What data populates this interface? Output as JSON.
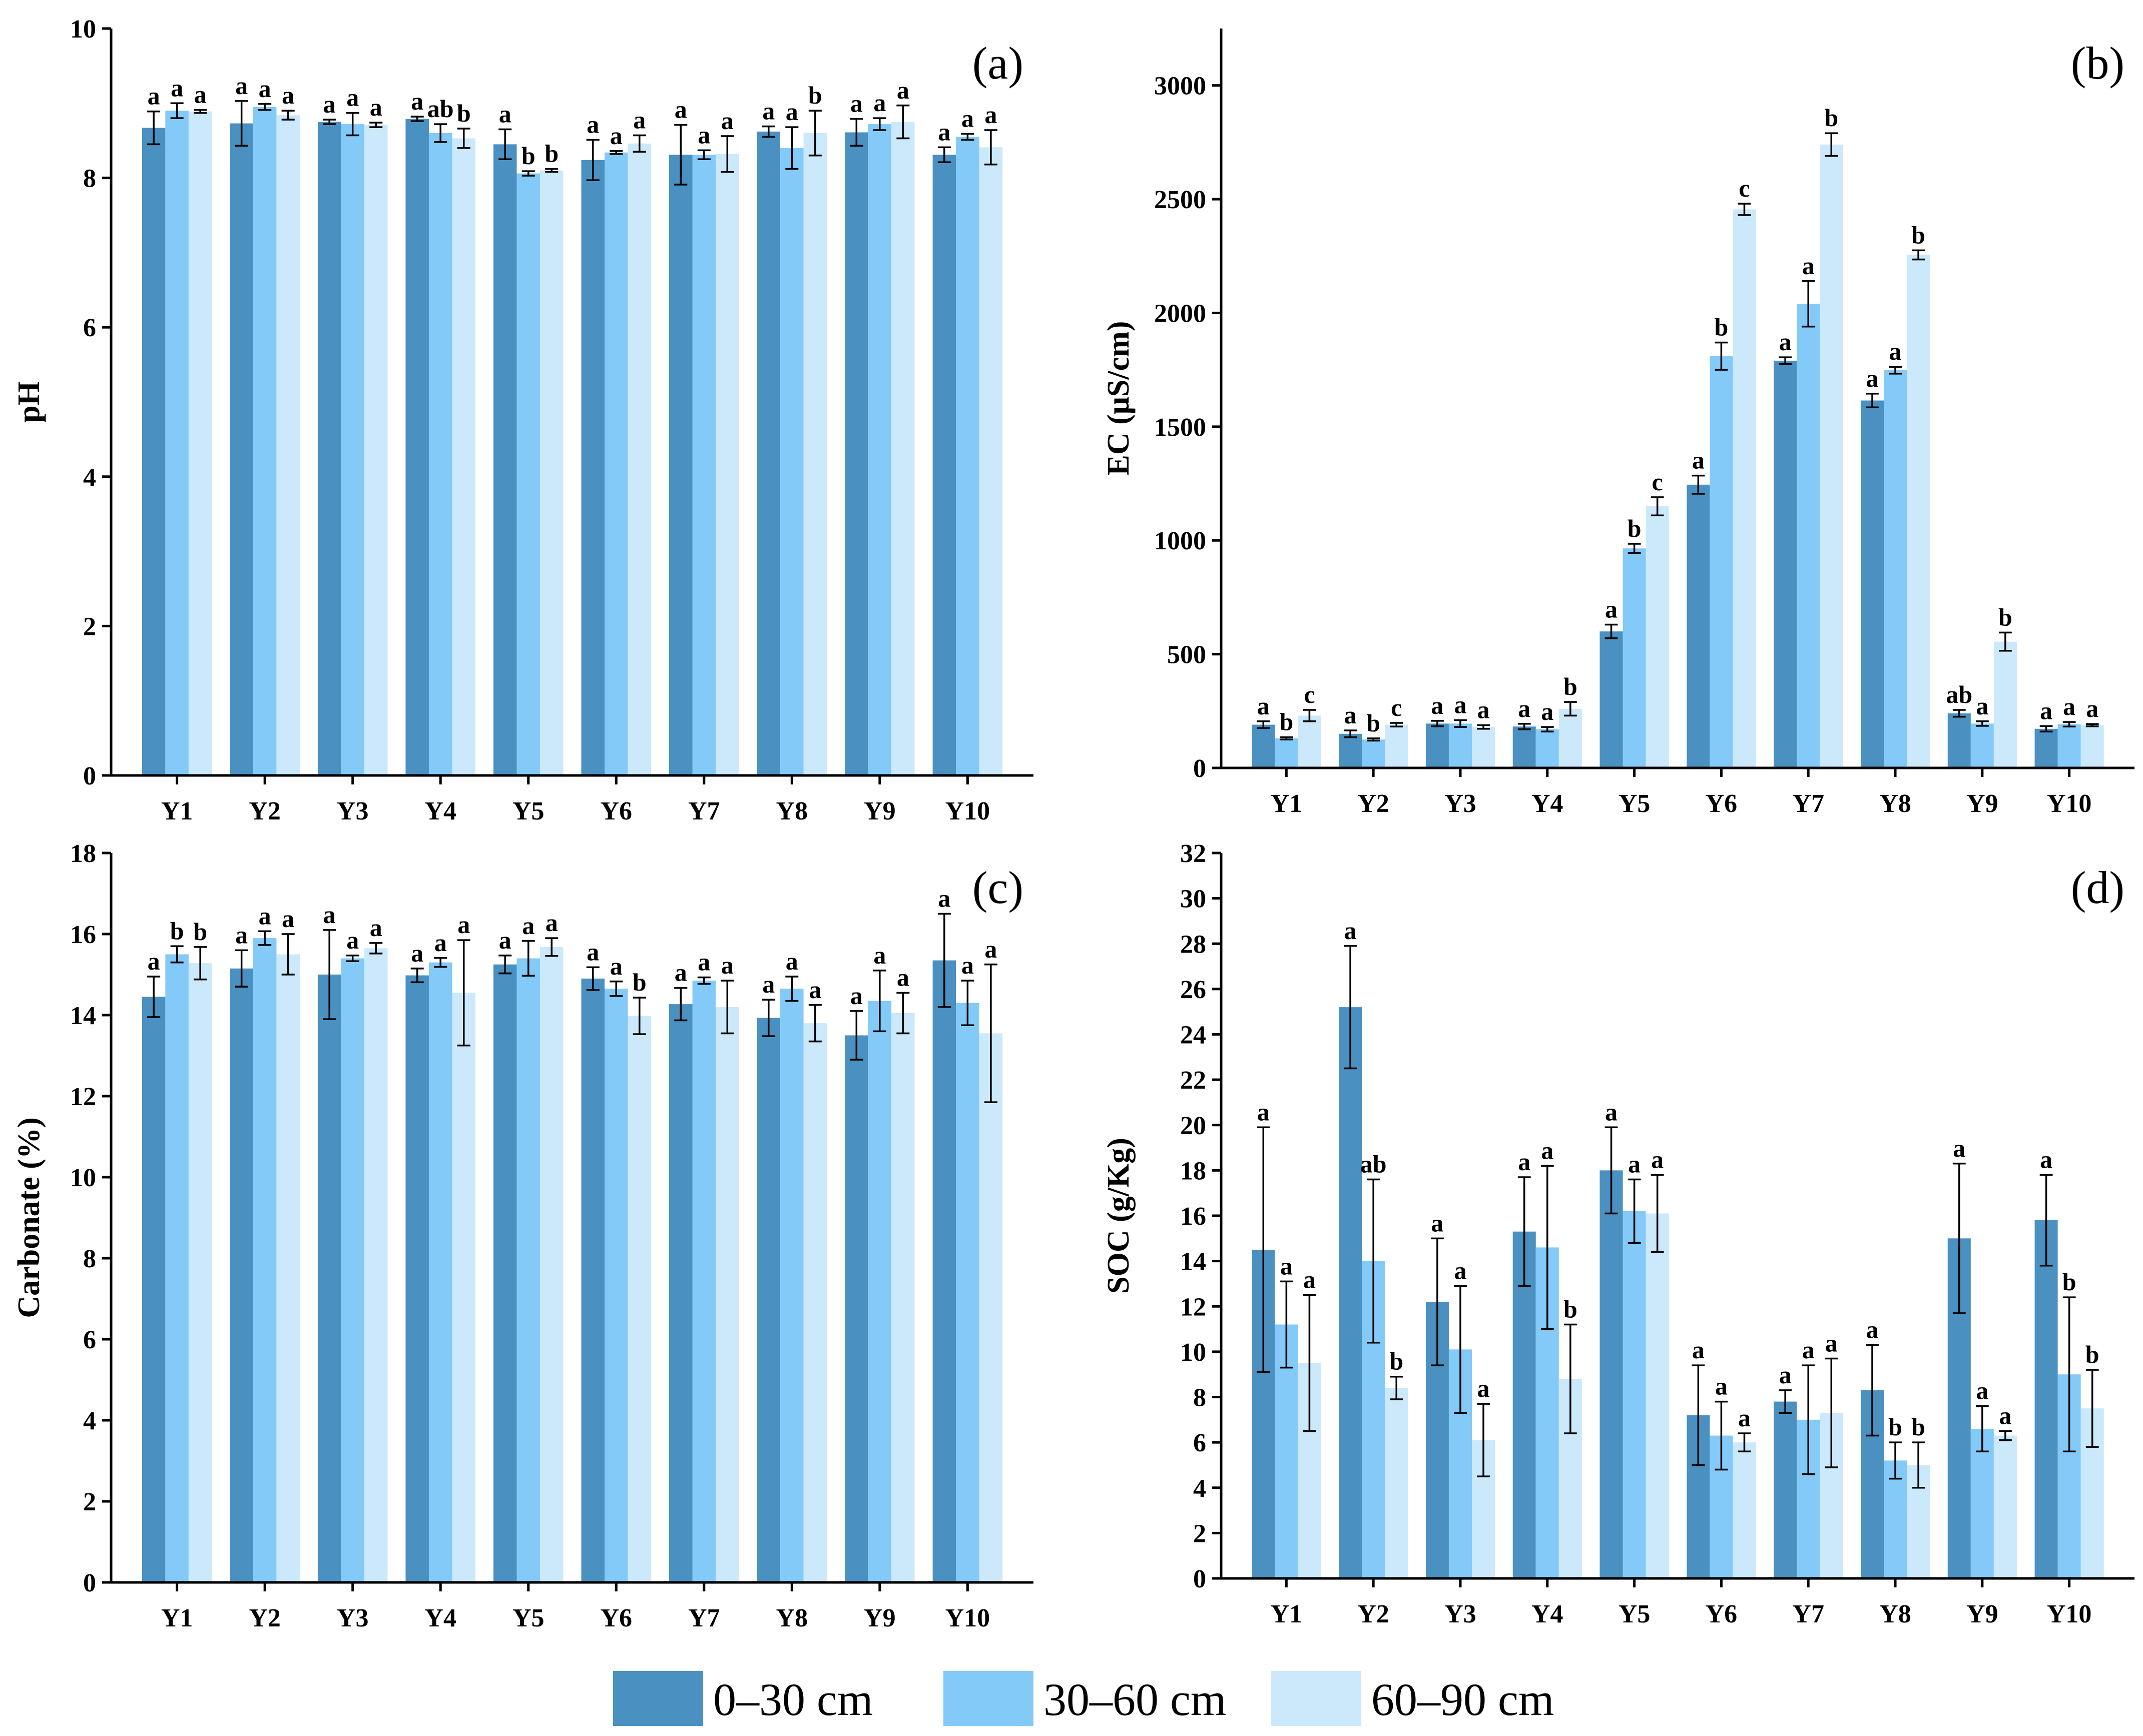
{
  "colors": {
    "s1": "#4a90c0",
    "s2": "#83caf8",
    "s3": "#cbe9fb"
  },
  "legend": {
    "items": [
      {
        "label": "0–30 cm",
        "color": "#4a90c0"
      },
      {
        "label": "30–60 cm",
        "color": "#83caf8"
      },
      {
        "label": "60–90 cm",
        "color": "#cbe9fb"
      }
    ]
  },
  "chart_data": [
    {
      "type": "bar",
      "panel": "(a)",
      "ylabel": "pH",
      "ylim": [
        0,
        10
      ],
      "yticks": [
        0,
        2,
        4,
        6,
        8,
        10
      ],
      "categories": [
        "Y1",
        "Y2",
        "Y3",
        "Y4",
        "Y5",
        "Y6",
        "Y7",
        "Y8",
        "Y9",
        "Y10"
      ],
      "series": [
        {
          "name": "0–30 cm",
          "values": [
            8.67,
            8.73,
            8.75,
            8.79,
            8.45,
            8.24,
            8.31,
            8.62,
            8.61,
            8.31
          ],
          "errors": [
            0.22,
            0.3,
            0.03,
            0.03,
            0.2,
            0.27,
            0.4,
            0.07,
            0.18,
            0.1
          ],
          "labels": [
            "a",
            "a",
            "a",
            "a",
            "a",
            "a",
            "a",
            "a",
            "a",
            "a"
          ]
        },
        {
          "name": "30–60 cm",
          "values": [
            8.9,
            8.95,
            8.72,
            8.6,
            8.06,
            8.34,
            8.31,
            8.4,
            8.72,
            8.55
          ],
          "errors": [
            0.1,
            0.04,
            0.15,
            0.12,
            0.03,
            0.02,
            0.06,
            0.28,
            0.08,
            0.04
          ],
          "labels": [
            "a",
            "a",
            "a",
            "ab",
            "b",
            "a",
            "a",
            "a",
            "a",
            "a"
          ]
        },
        {
          "name": "60–90 cm",
          "values": [
            8.89,
            8.84,
            8.71,
            8.53,
            8.1,
            8.46,
            8.32,
            8.6,
            8.75,
            8.41
          ],
          "errors": [
            0.02,
            0.06,
            0.03,
            0.13,
            0.02,
            0.11,
            0.24,
            0.3,
            0.22,
            0.23
          ],
          "labels": [
            "a",
            "a",
            "a",
            "b",
            "b",
            "a",
            "a",
            "b",
            "a",
            "a"
          ]
        }
      ]
    },
    {
      "type": "bar",
      "panel": "(b)",
      "ylabel": "EC (μS/cm)",
      "ylim": [
        0,
        3250
      ],
      "yticks": [
        0,
        500,
        1000,
        1500,
        2000,
        2500,
        3000
      ],
      "categories": [
        "Y1",
        "Y2",
        "Y3",
        "Y4",
        "Y5",
        "Y6",
        "Y7",
        "Y8",
        "Y9",
        "Y10"
      ],
      "series": [
        {
          "name": "0–30 cm",
          "values": [
            190,
            150,
            195,
            182,
            600,
            1245,
            1790,
            1615,
            240,
            172
          ],
          "errors": [
            15,
            15,
            12,
            12,
            30,
            40,
            15,
            30,
            15,
            12
          ],
          "labels": [
            "a",
            "a",
            "a",
            "a",
            "a",
            "a",
            "a",
            "a",
            "ab",
            "a"
          ]
        },
        {
          "name": "30–60 cm",
          "values": [
            130,
            125,
            195,
            170,
            965,
            1810,
            2040,
            1748,
            195,
            192
          ],
          "errors": [
            5,
            5,
            15,
            10,
            20,
            60,
            100,
            15,
            10,
            10
          ],
          "labels": [
            "b",
            "b",
            "a",
            "a",
            "b",
            "b",
            "a",
            "a",
            "a",
            "a"
          ]
        },
        {
          "name": "60–90 cm",
          "values": [
            230,
            190,
            180,
            260,
            1150,
            2455,
            2740,
            2255,
            555,
            188
          ],
          "errors": [
            25,
            8,
            8,
            30,
            40,
            25,
            50,
            20,
            40,
            5
          ],
          "labels": [
            "c",
            "c",
            "a",
            "b",
            "c",
            "c",
            "b",
            "b",
            "b",
            "a"
          ]
        }
      ]
    },
    {
      "type": "bar",
      "panel": "(c)",
      "ylabel": "Carbonate (%)",
      "ylim": [
        0,
        18
      ],
      "yticks": [
        0,
        2,
        4,
        6,
        8,
        10,
        12,
        14,
        16,
        18
      ],
      "categories": [
        "Y1",
        "Y2",
        "Y3",
        "Y4",
        "Y5",
        "Y6",
        "Y7",
        "Y8",
        "Y9",
        "Y10"
      ],
      "series": [
        {
          "name": "0–30 cm",
          "values": [
            14.45,
            15.15,
            15.0,
            14.98,
            15.25,
            14.9,
            14.27,
            13.93,
            13.5,
            15.35
          ],
          "errors": [
            0.5,
            0.45,
            1.1,
            0.17,
            0.22,
            0.28,
            0.4,
            0.45,
            0.6,
            1.15
          ],
          "labels": [
            "a",
            "a",
            "a",
            "a",
            "a",
            "a",
            "a",
            "a",
            "a",
            "a"
          ]
        },
        {
          "name": "30–60 cm",
          "values": [
            15.5,
            15.9,
            15.4,
            15.3,
            15.4,
            14.65,
            14.85,
            14.65,
            14.35,
            14.3
          ],
          "errors": [
            0.2,
            0.17,
            0.07,
            0.11,
            0.43,
            0.18,
            0.08,
            0.3,
            0.75,
            0.55
          ],
          "labels": [
            "b",
            "a",
            "a",
            "a",
            "a",
            "a",
            "a",
            "a",
            "a",
            "a"
          ]
        },
        {
          "name": "60–90 cm",
          "values": [
            15.28,
            15.5,
            15.65,
            14.55,
            15.68,
            13.98,
            14.2,
            13.8,
            14.05,
            13.55
          ],
          "errors": [
            0.4,
            0.5,
            0.13,
            1.3,
            0.22,
            0.45,
            0.65,
            0.45,
            0.5,
            1.7
          ],
          "labels": [
            "b",
            "a",
            "a",
            "a",
            "a",
            "b",
            "a",
            "a",
            "a",
            "a"
          ]
        }
      ]
    },
    {
      "type": "bar",
      "panel": "(d)",
      "ylabel": "SOC (g/Kg)",
      "ylim": [
        0,
        32
      ],
      "yticks": [
        0,
        2,
        4,
        6,
        8,
        10,
        12,
        14,
        16,
        18,
        20,
        22,
        24,
        26,
        28,
        30,
        32
      ],
      "categories": [
        "Y1",
        "Y2",
        "Y3",
        "Y4",
        "Y5",
        "Y6",
        "Y7",
        "Y8",
        "Y9",
        "Y10"
      ],
      "series": [
        {
          "name": "0–30 cm",
          "values": [
            14.5,
            25.2,
            12.2,
            15.3,
            18.0,
            7.2,
            7.8,
            8.3,
            15.0,
            15.8
          ],
          "errors": [
            5.4,
            2.7,
            2.8,
            2.4,
            1.9,
            2.2,
            0.5,
            2.0,
            3.3,
            2.0
          ],
          "labels": [
            "a",
            "a",
            "a",
            "a",
            "a",
            "a",
            "a",
            "a",
            "a",
            "a"
          ]
        },
        {
          "name": "30–60 cm",
          "values": [
            11.2,
            14.0,
            10.1,
            14.6,
            16.2,
            6.3,
            7.0,
            5.2,
            6.6,
            9.0
          ],
          "errors": [
            1.9,
            3.6,
            2.8,
            3.6,
            1.4,
            1.5,
            2.4,
            0.8,
            1.0,
            3.4
          ],
          "labels": [
            "a",
            "ab",
            "a",
            "a",
            "a",
            "a",
            "a",
            "b",
            "a",
            "b"
          ]
        },
        {
          "name": "60–90 cm",
          "values": [
            9.5,
            8.4,
            6.1,
            8.8,
            16.1,
            6.0,
            7.3,
            5.0,
            6.3,
            7.5
          ],
          "errors": [
            3.0,
            0.5,
            1.6,
            2.4,
            1.7,
            0.4,
            2.4,
            1.0,
            0.2,
            1.7
          ],
          "labels": [
            "a",
            "b",
            "a",
            "b",
            "a",
            "a",
            "a",
            "b",
            "a",
            "b"
          ]
        }
      ]
    }
  ]
}
